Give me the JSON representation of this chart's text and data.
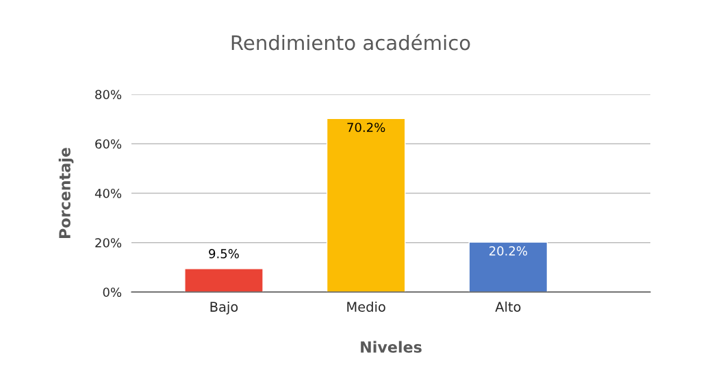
{
  "chart_data": {
    "type": "bar",
    "title": "Rendimiento académico",
    "xlabel": "Niveles",
    "ylabel": "Porcentaje",
    "categories": [
      "Bajo",
      "Medio",
      "Alto"
    ],
    "values": [
      9.5,
      70.2,
      20.2
    ],
    "colors": [
      "#ea4335",
      "#fbbc04",
      "#4e7ac7"
    ],
    "value_labels": [
      "9.5%",
      "70.2%",
      "20.2%"
    ],
    "ylim": [
      0,
      80
    ],
    "yticks": [
      {
        "value": 0,
        "label": "0%"
      },
      {
        "value": 20,
        "label": "20%"
      },
      {
        "value": 40,
        "label": "40%"
      },
      {
        "value": 60,
        "label": "60%"
      },
      {
        "value": 80,
        "label": "80%"
      }
    ],
    "grid": "y",
    "legend": false
  }
}
